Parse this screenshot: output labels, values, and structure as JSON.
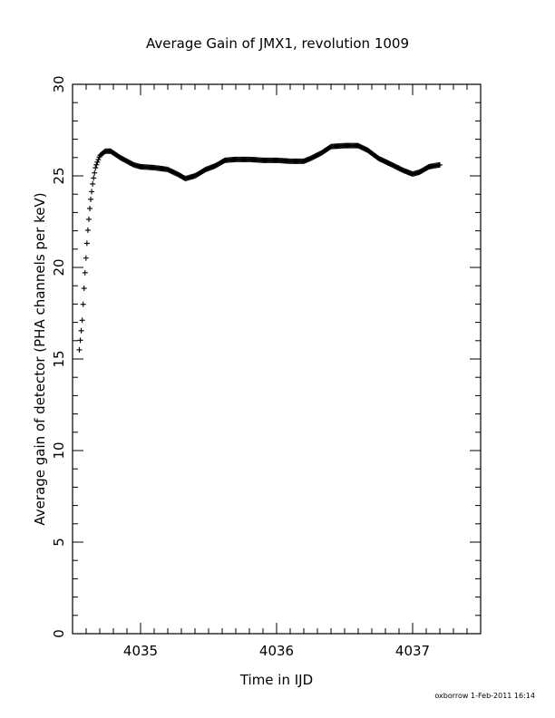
{
  "chart_data": {
    "type": "scatter",
    "title": "Average Gain of JMX1, revolution 1009",
    "xlabel": "Time in IJD",
    "ylabel": "Average gain of detector (PHA channels per keV)",
    "xlim": [
      4034.5,
      4037.5
    ],
    "ylim": [
      0,
      30
    ],
    "x_ticks": [
      4035,
      4036,
      4037
    ],
    "y_ticks": [
      0,
      5,
      10,
      15,
      20,
      25,
      30
    ],
    "x_tick_labels": [
      "4035",
      "4036",
      "4037"
    ],
    "y_tick_labels": [
      "0",
      "5",
      "10",
      "15",
      "20",
      "25",
      "30"
    ],
    "marker": "+",
    "grid": false,
    "series": [
      {
        "color": "#000000",
        "knots": [
          [
            4034.55,
            15.5
          ],
          [
            4034.57,
            17.0
          ],
          [
            4034.59,
            19.5
          ],
          [
            4034.61,
            21.8
          ],
          [
            4034.63,
            23.5
          ],
          [
            4034.65,
            24.7
          ],
          [
            4034.67,
            25.5
          ],
          [
            4034.7,
            26.1
          ],
          [
            4034.74,
            26.35
          ],
          [
            4034.78,
            26.35
          ],
          [
            4034.85,
            26.0
          ],
          [
            4034.95,
            25.6
          ],
          [
            4035.0,
            25.5
          ],
          [
            4035.1,
            25.45
          ],
          [
            4035.2,
            25.35
          ],
          [
            4035.27,
            25.1
          ],
          [
            4035.33,
            24.85
          ],
          [
            4035.4,
            25.0
          ],
          [
            4035.48,
            25.35
          ],
          [
            4035.55,
            25.55
          ],
          [
            4035.62,
            25.85
          ],
          [
            4035.7,
            25.9
          ],
          [
            4035.8,
            25.9
          ],
          [
            4035.9,
            25.85
          ],
          [
            4036.0,
            25.85
          ],
          [
            4036.1,
            25.8
          ],
          [
            4036.2,
            25.8
          ],
          [
            4036.25,
            25.95
          ],
          [
            4036.33,
            26.25
          ],
          [
            4036.4,
            26.6
          ],
          [
            4036.5,
            26.65
          ],
          [
            4036.6,
            26.65
          ],
          [
            4036.67,
            26.4
          ],
          [
            4036.75,
            25.95
          ],
          [
            4036.85,
            25.6
          ],
          [
            4036.93,
            25.3
          ],
          [
            4037.0,
            25.1
          ],
          [
            4037.05,
            25.2
          ],
          [
            4037.12,
            25.5
          ],
          [
            4037.2,
            25.6
          ]
        ]
      }
    ]
  },
  "footer": {
    "credit": "oxborrow 1-Feb-2011 16:14"
  }
}
